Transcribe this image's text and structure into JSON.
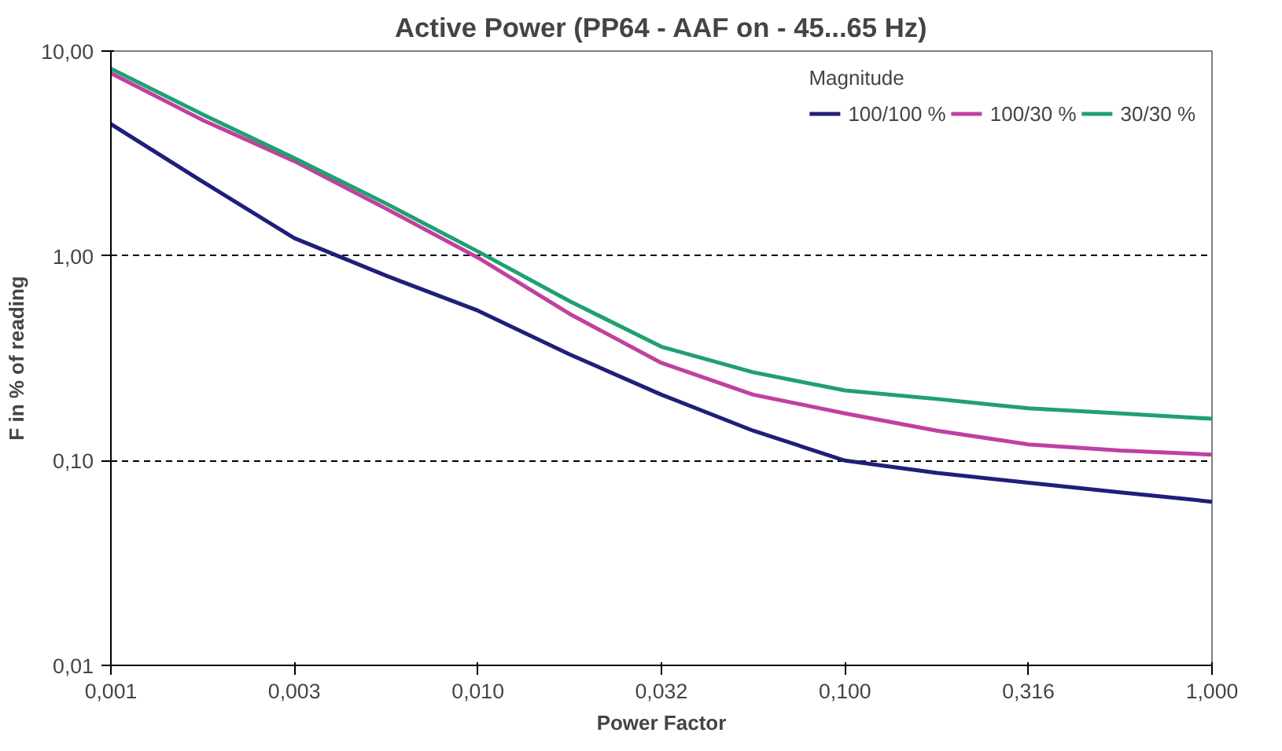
{
  "chart_data": {
    "type": "line",
    "title": "Active Power (PP64 - AAF on - 45...65 Hz)",
    "xlabel": "Power Factor",
    "ylabel": "F in % of reading",
    "legend_title": "Magnitude",
    "legend": "top right",
    "log": "xy",
    "grid": "y",
    "line_style": "solid",
    "marker": "none",
    "x": [
      0.001,
      0.00178,
      0.00316,
      0.00562,
      0.01,
      0.0178,
      0.0316,
      0.0562,
      0.1,
      0.178,
      0.316,
      0.562,
      1.0
    ],
    "xlim": [
      0.001,
      1.0
    ],
    "xticks": [
      {
        "value": 0.001,
        "label": "0,001"
      },
      {
        "value": 0.00316,
        "label": "0,003"
      },
      {
        "value": 0.01,
        "label": "0,010"
      },
      {
        "value": 0.0316,
        "label": "0,032"
      },
      {
        "value": 0.1,
        "label": "0,100"
      },
      {
        "value": 0.316,
        "label": "0,316"
      },
      {
        "value": 1.0,
        "label": "1,000"
      }
    ],
    "ylim": [
      0.01,
      10
    ],
    "yticks": [
      {
        "value": 0.01,
        "label": "0,01"
      },
      {
        "value": 0.1,
        "label": "0,10"
      },
      {
        "value": 1,
        "label": "1,00"
      },
      {
        "value": 10,
        "label": "10,00"
      }
    ],
    "series": [
      {
        "name": "100/100 %",
        "color": "#1f1f7a",
        "values": [
          4.4,
          2.3,
          1.22,
          0.8,
          0.54,
          0.33,
          0.21,
          0.14,
          0.1,
          0.087,
          0.078,
          0.07,
          0.063
        ]
      },
      {
        "name": "100/30 %",
        "color": "#c040a0",
        "values": [
          7.8,
          4.6,
          2.9,
          1.7,
          0.98,
          0.52,
          0.3,
          0.21,
          0.17,
          0.14,
          0.12,
          0.112,
          0.107
        ]
      },
      {
        "name": "30/30 %",
        "color": "#20a070",
        "values": [
          8.2,
          4.9,
          3.0,
          1.8,
          1.05,
          0.6,
          0.36,
          0.27,
          0.22,
          0.2,
          0.18,
          0.17,
          0.16
        ]
      }
    ]
  }
}
